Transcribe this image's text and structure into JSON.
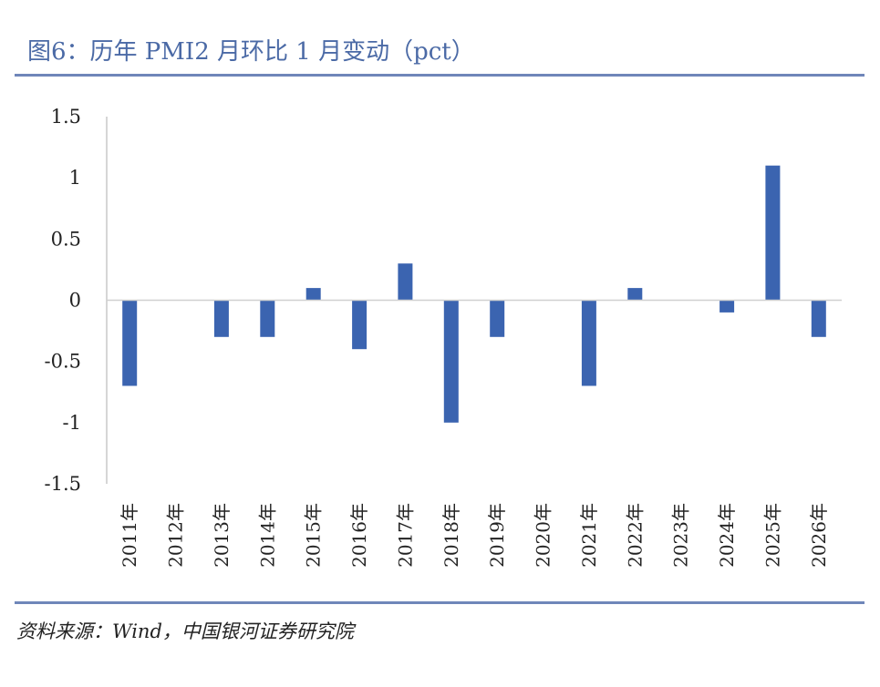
{
  "header": {
    "title": "图6：历年 PMI2 月环比 1 月变动（pct）"
  },
  "footer": {
    "source": "资料来源：Wind，中国银河证券研究院"
  },
  "chart_data": {
    "type": "bar",
    "title": "图6：历年 PMI2 月环比 1 月变动（pct）",
    "xlabel": "",
    "ylabel": "",
    "ylim": [
      -1.5,
      1.5
    ],
    "yticks": [
      1.5,
      1,
      0.5,
      0,
      -0.5,
      -1,
      -1.5
    ],
    "ytick_labels": [
      "1.5",
      "1",
      "0.5",
      "0",
      "-0.5",
      "-1",
      "-1.5"
    ],
    "categories": [
      "2011年",
      "2012年",
      "2013年",
      "2014年",
      "2015年",
      "2016年",
      "2017年",
      "2018年",
      "2019年",
      "2020年",
      "2021年",
      "2022年",
      "2023年",
      "2024年",
      "2025年",
      "2026年"
    ],
    "values": [
      -0.7,
      0,
      -0.3,
      -0.3,
      0.1,
      -0.4,
      0.3,
      -1.0,
      -0.3,
      0,
      -0.7,
      0.1,
      0,
      -0.1,
      1.1,
      -0.3
    ],
    "bar_color": "#3b64b0",
    "grid": false,
    "legend": "none"
  }
}
